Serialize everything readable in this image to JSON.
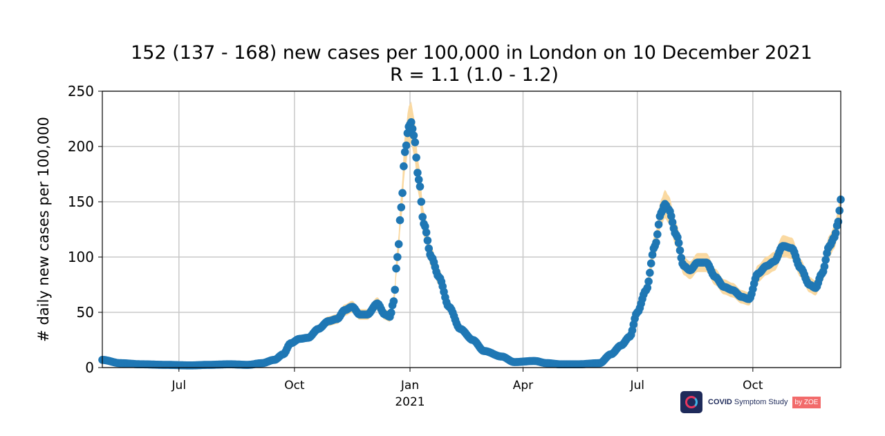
{
  "chart_data": {
    "type": "scatter",
    "title": "152 (137 - 168) new cases per 100,000 in London on 10 December 2021",
    "subtitle": "R = 1.1 (1.0 - 1.2)",
    "xlabel": "",
    "ylabel": "# daily new cases per 100,000",
    "ylim": [
      0,
      250
    ],
    "yticks": [
      "0",
      "50",
      "100",
      "150",
      "200",
      "250"
    ],
    "xlim": [
      "2020-05-01",
      "2021-12-10"
    ],
    "xticks": [
      {
        "date": "2020-07-01",
        "label": "Jul",
        "sublabel": ""
      },
      {
        "date": "2020-10-01",
        "label": "Oct",
        "sublabel": ""
      },
      {
        "date": "2021-01-01",
        "label": "Jan",
        "sublabel": "2021"
      },
      {
        "date": "2021-04-01",
        "label": "Apr",
        "sublabel": ""
      },
      {
        "date": "2021-07-01",
        "label": "Jul",
        "sublabel": ""
      },
      {
        "date": "2021-10-01",
        "label": "Oct",
        "sublabel": ""
      }
    ],
    "grid": true,
    "colors": {
      "points": "#1f77b4",
      "band": "#fad9a1",
      "grid": "#c8c8c8"
    },
    "series": [
      {
        "values": [
          [
            "2020-05-01",
            7
          ],
          [
            "2020-05-15",
            4
          ],
          [
            "2020-06-01",
            3
          ],
          [
            "2020-06-20",
            2.5
          ],
          [
            "2020-07-10",
            2
          ],
          [
            "2020-07-25",
            2.5
          ],
          [
            "2020-08-10",
            3
          ],
          [
            "2020-08-25",
            2.5
          ],
          [
            "2020-09-05",
            4
          ],
          [
            "2020-09-15",
            7
          ],
          [
            "2020-09-22",
            12
          ],
          [
            "2020-09-28",
            22
          ],
          [
            "2020-10-05",
            26
          ],
          [
            "2020-10-12",
            27
          ],
          [
            "2020-10-20",
            35
          ],
          [
            "2020-10-28",
            42
          ],
          [
            "2020-11-04",
            44
          ],
          [
            "2020-11-10",
            52
          ],
          [
            "2020-11-16",
            55
          ],
          [
            "2020-11-22",
            48
          ],
          [
            "2020-11-28",
            48
          ],
          [
            "2020-12-06",
            58
          ],
          [
            "2020-12-12",
            48
          ],
          [
            "2020-12-16",
            46
          ],
          [
            "2020-12-19",
            60
          ],
          [
            "2020-12-22",
            100
          ],
          [
            "2020-12-25",
            145
          ],
          [
            "2020-12-28",
            195
          ],
          [
            "2020-12-31",
            218
          ],
          [
            "2021-01-02",
            222
          ],
          [
            "2021-01-04",
            210
          ],
          [
            "2021-01-08",
            170
          ],
          [
            "2021-01-12",
            130
          ],
          [
            "2021-01-18",
            100
          ],
          [
            "2021-01-24",
            82
          ],
          [
            "2021-02-01",
            55
          ],
          [
            "2021-02-10",
            35
          ],
          [
            "2021-02-20",
            25
          ],
          [
            "2021-03-01",
            15
          ],
          [
            "2021-03-15",
            10
          ],
          [
            "2021-03-25",
            5
          ],
          [
            "2021-04-10",
            6
          ],
          [
            "2021-04-20",
            4
          ],
          [
            "2021-05-01",
            3
          ],
          [
            "2021-05-15",
            3
          ],
          [
            "2021-06-01",
            4
          ],
          [
            "2021-06-10",
            12
          ],
          [
            "2021-06-18",
            20
          ],
          [
            "2021-06-25",
            28
          ],
          [
            "2021-07-01",
            50
          ],
          [
            "2021-07-08",
            70
          ],
          [
            "2021-07-15",
            110
          ],
          [
            "2021-07-20",
            140
          ],
          [
            "2021-07-23",
            148
          ],
          [
            "2021-07-26",
            143
          ],
          [
            "2021-08-01",
            120
          ],
          [
            "2021-08-07",
            92
          ],
          [
            "2021-08-12",
            88
          ],
          [
            "2021-08-18",
            95
          ],
          [
            "2021-08-25",
            95
          ],
          [
            "2021-09-01",
            82
          ],
          [
            "2021-09-08",
            73
          ],
          [
            "2021-09-15",
            70
          ],
          [
            "2021-09-22",
            64
          ],
          [
            "2021-09-28",
            62
          ],
          [
            "2021-10-05",
            85
          ],
          [
            "2021-10-12",
            92
          ],
          [
            "2021-10-18",
            96
          ],
          [
            "2021-10-25",
            110
          ],
          [
            "2021-11-01",
            108
          ],
          [
            "2021-11-08",
            90
          ],
          [
            "2021-11-15",
            75
          ],
          [
            "2021-11-20",
            72
          ],
          [
            "2021-11-25",
            85
          ],
          [
            "2021-12-01",
            110
          ],
          [
            "2021-12-05",
            118
          ],
          [
            "2021-12-08",
            132
          ],
          [
            "2021-12-10",
            152
          ]
        ]
      }
    ]
  },
  "logo": {
    "name_bold": "COVID",
    "name_rest": " Symptom Study",
    "by": "by ZOE"
  }
}
